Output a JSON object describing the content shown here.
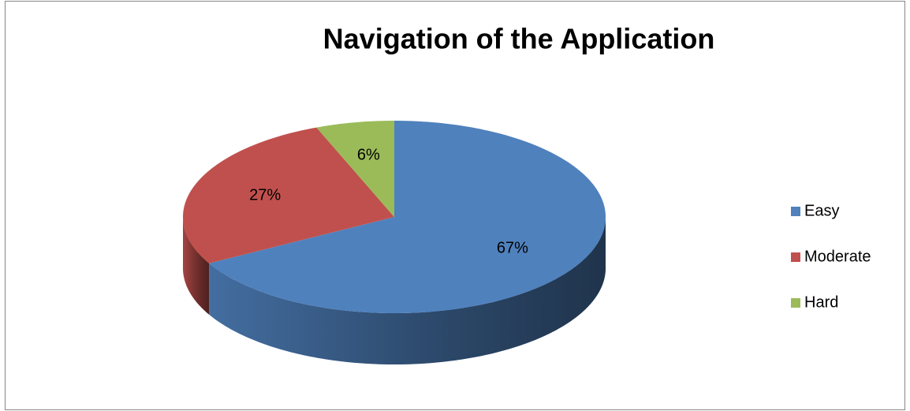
{
  "chart_data": {
    "type": "pie",
    "title": "Navigation of the Application",
    "categories": [
      "Easy",
      "Moderate",
      "Hard"
    ],
    "values": [
      67,
      27,
      6
    ],
    "value_labels": [
      "67%",
      "27%",
      "6%"
    ],
    "colors": [
      "#4f81bd",
      "#c0504d",
      "#9bbb59"
    ],
    "legend": "right"
  }
}
